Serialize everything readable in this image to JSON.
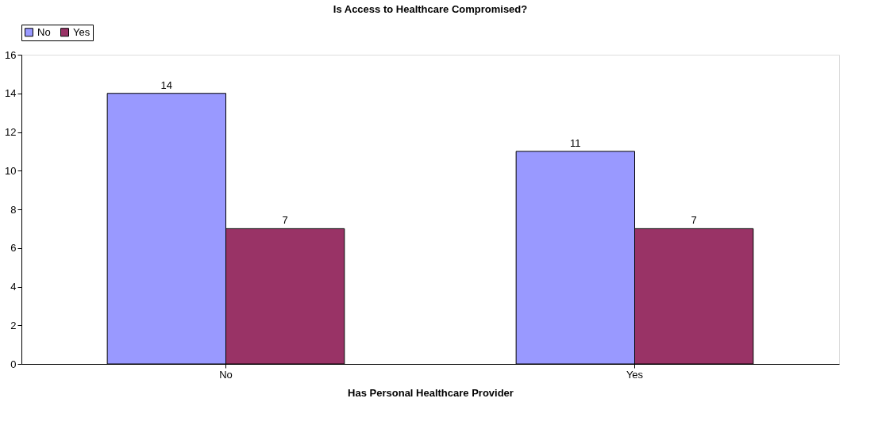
{
  "chart_data": {
    "type": "bar",
    "title": "Is Access to Healthcare Compromised?",
    "xlabel": "Has Personal Healthcare Provider",
    "categories": [
      "No",
      "Yes"
    ],
    "series": [
      {
        "name": "No",
        "color": "#9999ff",
        "values": [
          14,
          11
        ]
      },
      {
        "name": "Yes",
        "color": "#993366",
        "values": [
          7,
          7
        ]
      }
    ],
    "ylim": [
      0,
      16
    ],
    "yticks": [
      0,
      2,
      4,
      6,
      8,
      10,
      12,
      14,
      16
    ],
    "grid": false,
    "legend": "top",
    "data_labels": true
  }
}
